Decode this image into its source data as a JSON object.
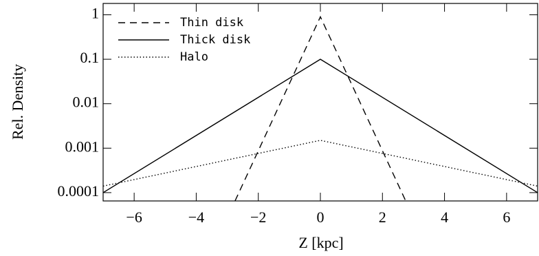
{
  "chart_data": {
    "type": "line",
    "xlabel": "Z  [kpc]",
    "ylabel": "Rel. Density",
    "log_y": true,
    "xlim": [
      -7,
      7
    ],
    "xticks": [
      {
        "value": -6,
        "label": "−6"
      },
      {
        "value": -4,
        "label": "−4"
      },
      {
        "value": -2,
        "label": "−2"
      },
      0,
      2,
      4,
      6
    ],
    "ylim": [
      6.5e-05,
      1.8
    ],
    "yticks": [
      0.0001,
      0.001,
      0.01,
      0.1,
      1
    ],
    "legend": "upper left",
    "series": [
      {
        "name": "Thin disk",
        "color": "#000000",
        "dash": "dashed",
        "x": [
          -2.75,
          0,
          2.75
        ],
        "values": [
          6.5e-05,
          0.9,
          6.5e-05
        ]
      },
      {
        "name": "Thick disk",
        "color": "#000000",
        "dash": "solid",
        "x": [
          -7,
          0,
          7
        ],
        "values": [
          0.0001,
          0.1,
          0.0001
        ]
      },
      {
        "name": "Halo",
        "color": "#000000",
        "dash": "dotted",
        "x": [
          -7,
          0,
          7
        ],
        "values": [
          0.00014,
          0.0015,
          0.00014
        ]
      }
    ]
  }
}
